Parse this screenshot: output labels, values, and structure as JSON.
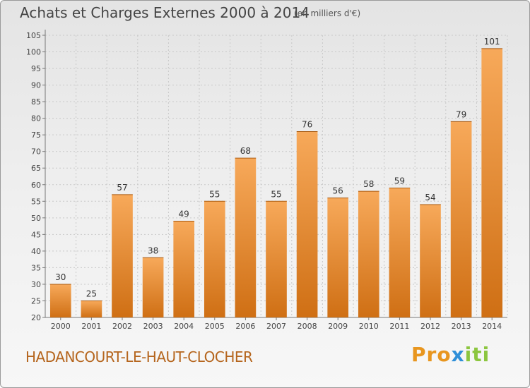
{
  "chart_data": {
    "type": "bar",
    "title": "Achats et Charges Externes 2000 à 2014",
    "subtitle": "(en milliers d'€)",
    "categories": [
      "2000",
      "2001",
      "2002",
      "2003",
      "2004",
      "2005",
      "2006",
      "2007",
      "2008",
      "2009",
      "2010",
      "2011",
      "2012",
      "2013",
      "2014"
    ],
    "values": [
      30,
      25,
      57,
      38,
      49,
      55,
      68,
      55,
      76,
      56,
      58,
      59,
      54,
      79,
      101
    ],
    "ylim": [
      20,
      105
    ],
    "yticks": [
      20,
      25,
      30,
      35,
      40,
      45,
      50,
      55,
      60,
      65,
      70,
      75,
      80,
      85,
      90,
      95,
      100,
      105
    ],
    "grid": true,
    "bar_color": "#f0902a",
    "bar_color_light": "#f7a95a",
    "bar_color_dark": "#cf6f14"
  },
  "footer": {
    "commune": "HADANCOURT-LE-HAUT-CLOCHER",
    "logo_parts": [
      "Pro",
      "x",
      "iti"
    ]
  }
}
